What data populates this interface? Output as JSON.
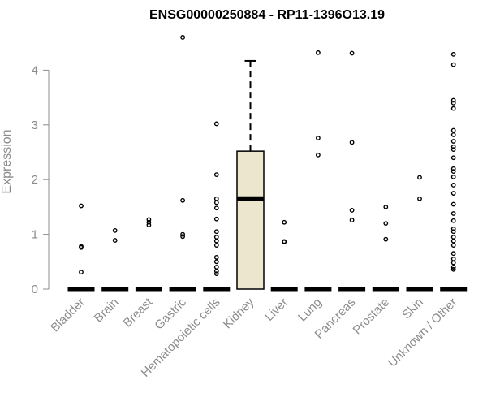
{
  "chart_data": {
    "type": "box",
    "title": "ENSG00000250884 - RP11-1396O13.19",
    "xlabel": "",
    "ylabel": "Expression",
    "ylim": [
      0,
      4.6
    ],
    "yticks": [
      0,
      1,
      2,
      3,
      4
    ],
    "grid": false,
    "categories": [
      "Bladder",
      "Brain",
      "Breast",
      "Gastric",
      "Hematopoietic cells",
      "Kidney",
      "Liver",
      "Lung",
      "Pancreas",
      "Prostate",
      "Skin",
      "Unknown / Other"
    ],
    "boxes": [
      {
        "category": "Bladder",
        "q1": 0,
        "median": 0,
        "q3": 0,
        "whisker_low": 0,
        "whisker_high": 0,
        "outliers": [
          1.52,
          0.78,
          0.76,
          0.31
        ]
      },
      {
        "category": "Brain",
        "q1": 0,
        "median": 0,
        "q3": 0,
        "whisker_low": 0,
        "whisker_high": 0,
        "outliers": [
          1.07,
          0.89
        ]
      },
      {
        "category": "Breast",
        "q1": 0,
        "median": 0,
        "q3": 0,
        "whisker_low": 0,
        "whisker_high": 0,
        "outliers": [
          1.27,
          1.22,
          1.17
        ]
      },
      {
        "category": "Gastric",
        "q1": 0,
        "median": 0,
        "q3": 0,
        "whisker_low": 0,
        "whisker_high": 0,
        "outliers": [
          4.6,
          1.62,
          1.0,
          0.96
        ]
      },
      {
        "category": "Hematopoietic cells",
        "q1": 0,
        "median": 0,
        "q3": 0,
        "whisker_low": 0,
        "whisker_high": 0,
        "outliers": [
          3.02,
          2.09,
          1.65,
          1.58,
          1.48,
          1.28,
          1.05,
          0.95,
          0.88,
          0.8,
          0.58,
          0.5,
          0.4,
          0.33,
          0.28
        ]
      },
      {
        "category": "Kidney",
        "q1": 0,
        "median": 1.65,
        "q3": 2.52,
        "whisker_low": 0,
        "whisker_high": 4.17,
        "outliers": []
      },
      {
        "category": "Liver",
        "q1": 0,
        "median": 0,
        "q3": 0,
        "whisker_low": 0,
        "whisker_high": 0,
        "outliers": [
          1.22,
          0.87,
          0.86
        ]
      },
      {
        "category": "Lung",
        "q1": 0,
        "median": 0,
        "q3": 0,
        "whisker_low": 0,
        "whisker_high": 0,
        "outliers": [
          4.32,
          2.76,
          2.45
        ]
      },
      {
        "category": "Pancreas",
        "q1": 0,
        "median": 0,
        "q3": 0,
        "whisker_low": 0,
        "whisker_high": 0,
        "outliers": [
          4.31,
          2.68,
          1.44,
          1.26
        ]
      },
      {
        "category": "Prostate",
        "q1": 0,
        "median": 0,
        "q3": 0,
        "whisker_low": 0,
        "whisker_high": 0,
        "outliers": [
          1.5,
          1.2,
          0.91
        ]
      },
      {
        "category": "Skin",
        "q1": 0,
        "median": 0,
        "q3": 0,
        "whisker_low": 0,
        "whisker_high": 0,
        "outliers": [
          2.04,
          1.65
        ]
      },
      {
        "category": "Unknown / Other",
        "q1": 0,
        "median": 0,
        "q3": 0,
        "whisker_low": 0,
        "whisker_high": 0,
        "outliers": [
          4.29,
          4.1,
          3.45,
          3.4,
          3.3,
          2.9,
          2.82,
          2.7,
          2.6,
          2.55,
          2.4,
          2.2,
          2.15,
          2.05,
          1.9,
          1.75,
          1.55,
          1.38,
          1.25,
          1.1,
          1.05,
          0.95,
          0.88,
          0.8,
          0.65,
          0.55,
          0.48,
          0.4,
          0.36
        ]
      }
    ],
    "colors": {
      "highlight_box_fill": "#ede6cf",
      "box_fill": "#ffffff",
      "stroke": "#000000",
      "axis_text": "#8c8c8c"
    },
    "highlight_category": "Kidney"
  }
}
